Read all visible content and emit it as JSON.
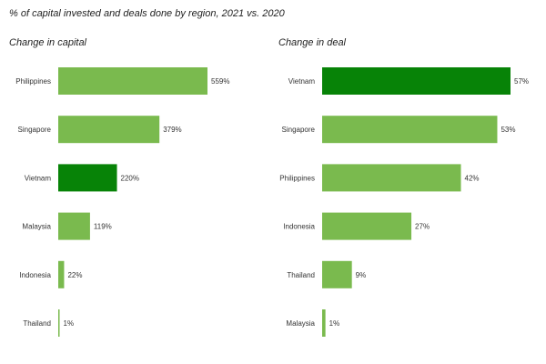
{
  "title": "% of capital invested and deals done by region, 2021 vs. 2020",
  "colors": {
    "bar": "#7aba4e",
    "highlight": "#078307",
    "text": "#333333"
  },
  "chart_data": [
    {
      "type": "bar",
      "orientation": "horizontal",
      "title": "Change in capital",
      "categories": [
        "Philippines",
        "Singapore",
        "Vietnam",
        "Malaysia",
        "Indonesia",
        "Thailand"
      ],
      "values": [
        559,
        379,
        220,
        119,
        22,
        1
      ],
      "value_labels": [
        "559%",
        "379%",
        "220%",
        "119%",
        "22%",
        "1%"
      ],
      "highlight": "Vietnam",
      "xlim": [
        0,
        559
      ],
      "unit": "%"
    },
    {
      "type": "bar",
      "orientation": "horizontal",
      "title": "Change in deal",
      "categories": [
        "Vietnam",
        "Singapore",
        "Philippines",
        "Indonesia",
        "Thailand",
        "Malaysia"
      ],
      "values": [
        57,
        53,
        42,
        27,
        9,
        1
      ],
      "value_labels": [
        "57%",
        "53%",
        "42%",
        "27%",
        "9%",
        "1%"
      ],
      "highlight": "Vietnam",
      "xlim": [
        0,
        57
      ],
      "unit": "%"
    }
  ]
}
